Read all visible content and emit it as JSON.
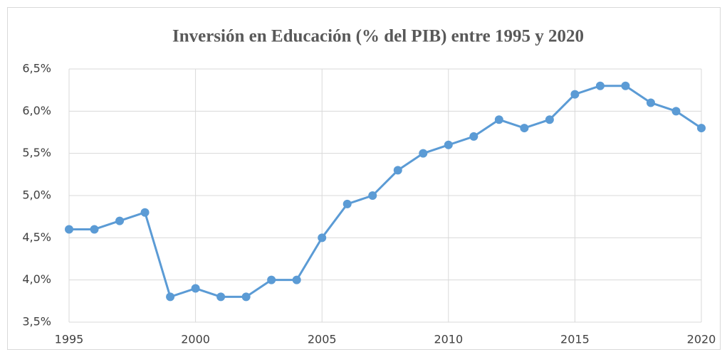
{
  "chart_data": {
    "type": "line",
    "title": "Inversión en Educación (% del PIB) entre 1995 y 2020",
    "x": [
      1995,
      1996,
      1997,
      1998,
      1999,
      2000,
      2001,
      2002,
      2003,
      2004,
      2005,
      2006,
      2007,
      2008,
      2009,
      2010,
      2011,
      2012,
      2013,
      2014,
      2015,
      2016,
      2017,
      2018,
      2019,
      2020
    ],
    "series": [
      {
        "color": "#5b9bd5",
        "values": [
          4.6,
          4.6,
          4.7,
          4.8,
          3.8,
          3.9,
          3.8,
          3.8,
          4.0,
          4.0,
          4.5,
          4.9,
          5.0,
          5.3,
          5.5,
          5.6,
          5.7,
          5.9,
          5.8,
          5.9,
          6.2,
          6.3,
          6.3,
          6.1,
          6.0,
          5.8
        ]
      }
    ],
    "xlim": [
      1995,
      2020
    ],
    "xticks": [
      1995,
      2000,
      2005,
      2010,
      2015,
      2020
    ],
    "ylim": [
      3.5,
      6.5
    ],
    "yticks": [
      {
        "value": 3.5,
        "label": "3,5%"
      },
      {
        "value": 4.0,
        "label": "4,0%"
      },
      {
        "value": 4.5,
        "label": "4,5%"
      },
      {
        "value": 5.0,
        "label": "5,0%"
      },
      {
        "value": 5.5,
        "label": "5,5%"
      },
      {
        "value": 6.0,
        "label": "6,0%"
      },
      {
        "value": 6.5,
        "label": "6,5%"
      }
    ],
    "grid": true
  }
}
